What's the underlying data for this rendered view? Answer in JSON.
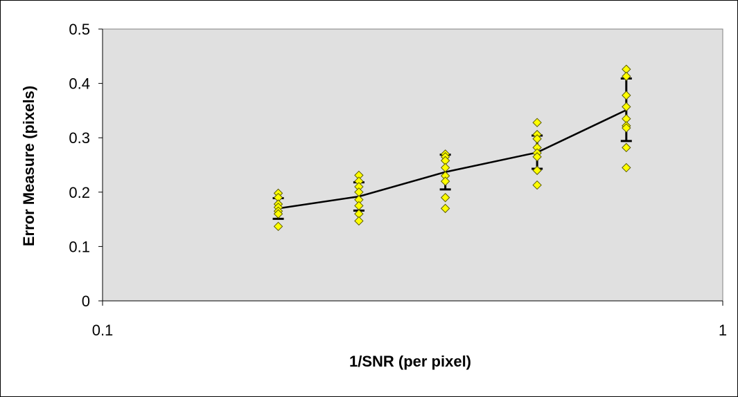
{
  "chart_data": {
    "type": "scatter",
    "title": "",
    "xlabel": "1/SNR (per pixel)",
    "ylabel": "Error Measure (pixels)",
    "xscale": "log",
    "xlim": [
      0.1,
      1
    ],
    "ylim": [
      0,
      0.5
    ],
    "x_ticks": [
      0.1,
      1
    ],
    "x_tick_labels": [
      "0.1",
      "1"
    ],
    "y_ticks": [
      0,
      0.1,
      0.2,
      0.3,
      0.4,
      0.5
    ],
    "y_tick_labels": [
      "0",
      "0.1",
      "0.2",
      "0.3",
      "0.4",
      "0.5"
    ],
    "grid": false,
    "legend": "none",
    "plot_background": "#e0e0e0",
    "point_color": "#ffff00",
    "line_color": "#000000",
    "scatter": {
      "marker": "diamond",
      "groups": [
        {
          "x": 0.192,
          "y": [
            0.198,
            0.19,
            0.178,
            0.172,
            0.165,
            0.16,
            0.137
          ]
        },
        {
          "x": 0.259,
          "y": [
            0.231,
            0.22,
            0.21,
            0.2,
            0.186,
            0.175,
            0.16,
            0.147
          ]
        },
        {
          "x": 0.357,
          "y": [
            0.27,
            0.265,
            0.258,
            0.245,
            0.23,
            0.22,
            0.19,
            0.17
          ]
        },
        {
          "x": 0.502,
          "y": [
            0.328,
            0.306,
            0.298,
            0.282,
            0.272,
            0.265,
            0.24,
            0.213
          ]
        },
        {
          "x": 0.699,
          "y": [
            0.426,
            0.413,
            0.378,
            0.357,
            0.335,
            0.322,
            0.318,
            0.282,
            0.245
          ]
        }
      ]
    },
    "mean_line": {
      "x": [
        0.192,
        0.259,
        0.357,
        0.502,
        0.699
      ],
      "y": [
        0.17,
        0.192,
        0.237,
        0.273,
        0.351
      ]
    },
    "error_bars": [
      {
        "x": 0.192,
        "low": 0.151,
        "high": 0.189
      },
      {
        "x": 0.259,
        "low": 0.166,
        "high": 0.218
      },
      {
        "x": 0.357,
        "low": 0.205,
        "high": 0.269
      },
      {
        "x": 0.502,
        "low": 0.243,
        "high": 0.304
      },
      {
        "x": 0.699,
        "low": 0.294,
        "high": 0.409
      }
    ]
  }
}
